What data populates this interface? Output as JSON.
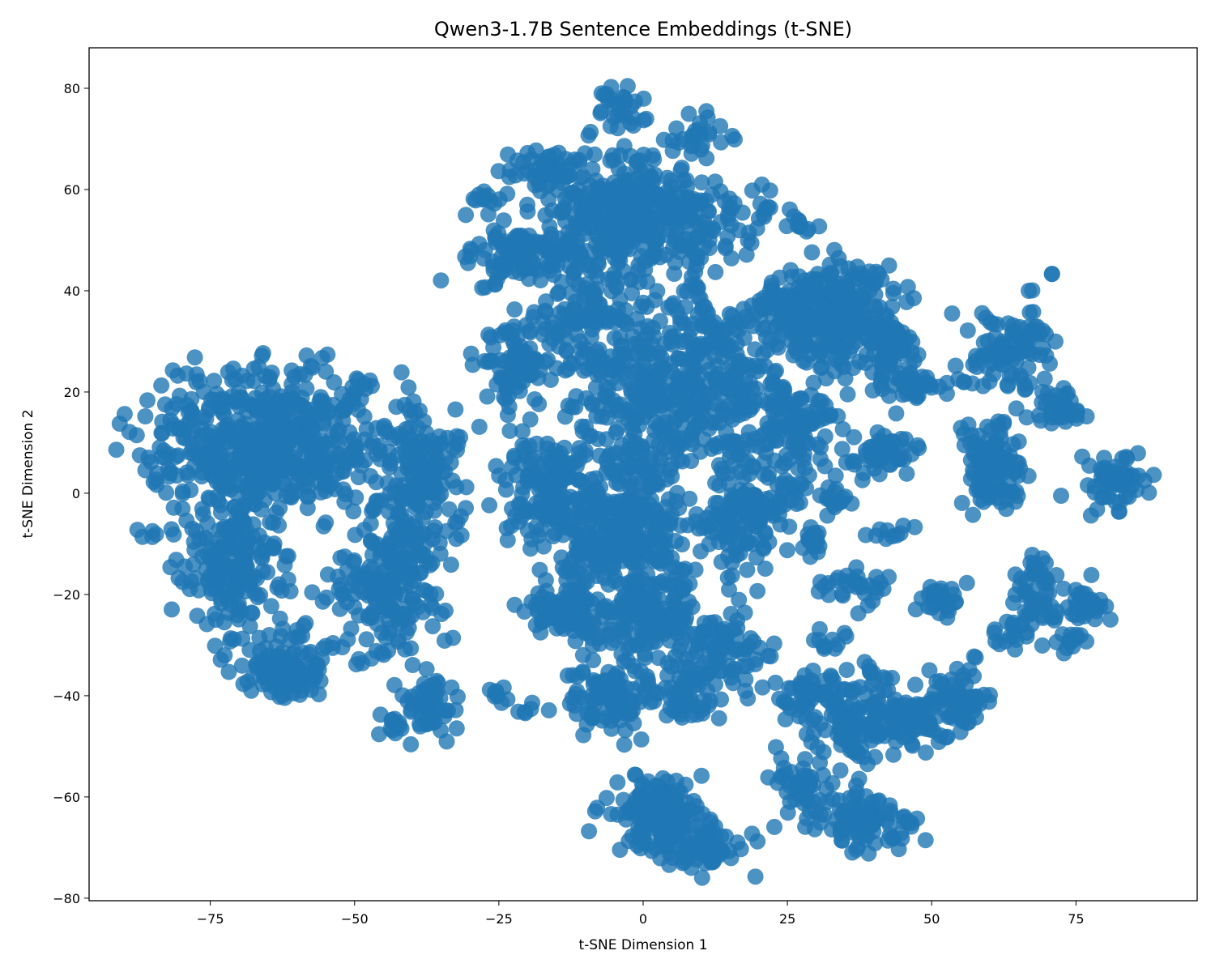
{
  "chart_data": {
    "type": "scatter",
    "title": "Qwen3-1.7B Sentence Embeddings (t-SNE)",
    "xlabel": "t-SNE Dimension 1",
    "ylabel": "t-SNE Dimension 2",
    "xlim": [
      -96,
      96
    ],
    "ylim": [
      -80.5,
      88
    ],
    "xticks": [
      -75,
      -50,
      -25,
      0,
      25,
      50,
      75
    ],
    "yticks": [
      -80,
      -60,
      -40,
      -20,
      0,
      20,
      40,
      60,
      80
    ],
    "grid": false,
    "legend": "none",
    "color": "#1f77b4",
    "series": [
      {
        "clusters": [
          {
            "cx": -65,
            "cy": 10,
            "sx": 10,
            "sy": 7,
            "n": 600
          },
          {
            "cx": -72,
            "cy": -14,
            "sx": 5,
            "sy": 8,
            "n": 180
          },
          {
            "cx": -62,
            "cy": -34,
            "sx": 4,
            "sy": 3.5,
            "n": 110
          },
          {
            "cx": -45,
            "cy": -18,
            "sx": 5,
            "sy": 7,
            "n": 180
          },
          {
            "cx": -38,
            "cy": 2,
            "sx": 3.5,
            "sy": 8,
            "n": 150
          },
          {
            "cx": -49,
            "cy": 21,
            "sx": 1.2,
            "sy": 1.5,
            "n": 8
          },
          {
            "cx": -37,
            "cy": -42,
            "sx": 2.5,
            "sy": 3,
            "n": 50
          },
          {
            "cx": -44,
            "cy": -46,
            "sx": 1.5,
            "sy": 1.5,
            "n": 12
          },
          {
            "cx": -86,
            "cy": -9,
            "sx": 1,
            "sy": 1,
            "n": 5
          },
          {
            "cx": -25,
            "cy": -40,
            "sx": 1.2,
            "sy": 1,
            "n": 8
          },
          {
            "cx": -20,
            "cy": -42,
            "sx": 1,
            "sy": 1,
            "n": 5
          },
          {
            "cx": 0,
            "cy": 55,
            "sx": 9,
            "sy": 6,
            "n": 400
          },
          {
            "cx": -22,
            "cy": 47,
            "sx": 5,
            "sy": 3,
            "n": 90
          },
          {
            "cx": -26,
            "cy": 58,
            "sx": 2,
            "sy": 1,
            "n": 12
          },
          {
            "cx": -17,
            "cy": 65,
            "sx": 3,
            "sy": 2,
            "n": 35
          },
          {
            "cx": -4,
            "cy": 77,
            "sx": 3,
            "sy": 2.5,
            "n": 30
          },
          {
            "cx": 10,
            "cy": 70,
            "sx": 3,
            "sy": 2.5,
            "n": 25
          },
          {
            "cx": -22,
            "cy": 24,
            "sx": 3.5,
            "sy": 5,
            "n": 70
          },
          {
            "cx": -10,
            "cy": 36,
            "sx": 5,
            "sy": 6,
            "n": 110
          },
          {
            "cx": 0,
            "cy": 20,
            "sx": 7,
            "sy": 10,
            "n": 320
          },
          {
            "cx": 15,
            "cy": 22,
            "sx": 6,
            "sy": 10,
            "n": 220
          },
          {
            "cx": -17,
            "cy": 4,
            "sx": 4,
            "sy": 3,
            "n": 70
          },
          {
            "cx": -18,
            "cy": -3,
            "sx": 3.5,
            "sy": 2,
            "n": 45
          },
          {
            "cx": -5,
            "cy": -8,
            "sx": 7,
            "sy": 7,
            "n": 300
          },
          {
            "cx": 18,
            "cy": -6,
            "sx": 4,
            "sy": 6,
            "n": 130
          },
          {
            "cx": -12,
            "cy": -23,
            "sx": 4,
            "sy": 3,
            "n": 110
          },
          {
            "cx": 2,
            "cy": -25,
            "sx": 4,
            "sy": 4,
            "n": 120
          },
          {
            "cx": 14,
            "cy": -31,
            "sx": 4,
            "sy": 4,
            "n": 80
          },
          {
            "cx": -6,
            "cy": -40,
            "sx": 4,
            "sy": 4,
            "n": 110
          },
          {
            "cx": 7,
            "cy": -40,
            "sx": 3,
            "sy": 3,
            "n": 50
          },
          {
            "cx": 3,
            "cy": -63,
            "sx": 4,
            "sy": 4,
            "n": 150
          },
          {
            "cx": 11,
            "cy": -70,
            "sx": 3,
            "sy": 2,
            "n": 60
          },
          {
            "cx": 33,
            "cy": 35,
            "sx": 5,
            "sy": 6,
            "n": 260
          },
          {
            "cx": 25,
            "cy": 36,
            "sx": 3,
            "sy": 3,
            "n": 40
          },
          {
            "cx": 43,
            "cy": 28,
            "sx": 3,
            "sy": 5,
            "n": 60
          },
          {
            "cx": 27,
            "cy": 13,
            "sx": 4,
            "sy": 7,
            "n": 100
          },
          {
            "cx": 27,
            "cy": 53,
            "sx": 1.5,
            "sy": 1,
            "n": 10
          },
          {
            "cx": 22,
            "cy": 56,
            "sx": 1.2,
            "sy": 1.5,
            "n": 5
          },
          {
            "cx": 41,
            "cy": 8,
            "sx": 3.5,
            "sy": 2,
            "n": 50
          },
          {
            "cx": 33,
            "cy": -2,
            "sx": 1.5,
            "sy": 1.5,
            "n": 15
          },
          {
            "cx": 43,
            "cy": -8,
            "sx": 1.5,
            "sy": 1,
            "n": 10
          },
          {
            "cx": 48,
            "cy": 21,
            "sx": 4,
            "sy": 2,
            "n": 40
          },
          {
            "cx": 60,
            "cy": 6,
            "sx": 3,
            "sy": 4,
            "n": 100
          },
          {
            "cx": 63,
            "cy": 28,
            "sx": 4,
            "sy": 4,
            "n": 100
          },
          {
            "cx": 71,
            "cy": 17,
            "sx": 2.5,
            "sy": 2,
            "n": 40
          },
          {
            "cx": 82,
            "cy": 2,
            "sx": 3,
            "sy": 2.5,
            "n": 60
          },
          {
            "cx": 62,
            "cy": 0,
            "sx": 2,
            "sy": 1.5,
            "n": 15
          },
          {
            "cx": 71,
            "cy": 43,
            "sx": 0.5,
            "sy": 0.5,
            "n": 2
          },
          {
            "cx": 29,
            "cy": -10,
            "sx": 1.5,
            "sy": 2,
            "n": 15
          },
          {
            "cx": 37,
            "cy": -18,
            "sx": 2.5,
            "sy": 2,
            "n": 30
          },
          {
            "cx": 52,
            "cy": -20,
            "sx": 2,
            "sy": 2,
            "n": 30
          },
          {
            "cx": 68,
            "cy": -19,
            "sx": 2,
            "sy": 3,
            "n": 40
          },
          {
            "cx": 76,
            "cy": -22,
            "sx": 2.5,
            "sy": 2,
            "n": 40
          },
          {
            "cx": 64,
            "cy": -27,
            "sx": 2,
            "sy": 1.5,
            "n": 20
          },
          {
            "cx": 74,
            "cy": -29,
            "sx": 1.5,
            "sy": 1.5,
            "n": 15
          },
          {
            "cx": 28,
            "cy": -40,
            "sx": 3,
            "sy": 2.5,
            "n": 50
          },
          {
            "cx": 36,
            "cy": -45,
            "sx": 3,
            "sy": 4,
            "n": 80
          },
          {
            "cx": 48,
            "cy": -44,
            "sx": 3.5,
            "sy": 3,
            "n": 80
          },
          {
            "cx": 55,
            "cy": -40,
            "sx": 3,
            "sy": 3,
            "n": 60
          },
          {
            "cx": 28,
            "cy": -58,
            "sx": 3,
            "sy": 3,
            "n": 50
          },
          {
            "cx": 38,
            "cy": -65,
            "sx": 3.5,
            "sy": 3,
            "n": 90
          },
          {
            "cx": 40,
            "cy": -37,
            "sx": 2,
            "sy": 1.5,
            "n": 15
          },
          {
            "cx": 33,
            "cy": -30,
            "sx": 1.5,
            "sy": 2,
            "n": 12
          },
          {
            "cx": 46,
            "cy": -65,
            "sx": 1,
            "sy": 1,
            "n": 5
          },
          {
            "cx": 20,
            "cy": -68,
            "sx": 0.5,
            "sy": 0.5,
            "n": 2
          },
          {
            "cx": -8,
            "cy": -63,
            "sx": 0.5,
            "sy": 0.5,
            "n": 2
          }
        ]
      }
    ]
  }
}
